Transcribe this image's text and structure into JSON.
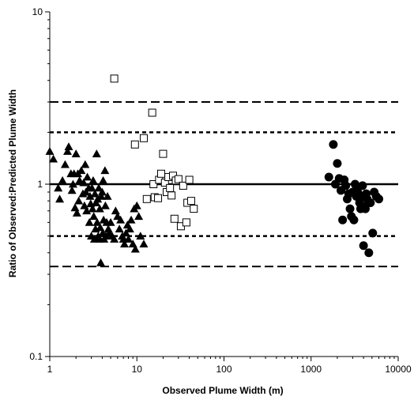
{
  "chart_data": {
    "type": "scatter",
    "xlabel": "Observed Plume Width (m)",
    "ylabel": "Ratio of Observed:Predicted Plume Width",
    "x_scale": "log",
    "y_scale": "log",
    "xlim": [
      1,
      10000
    ],
    "ylim": [
      0.1,
      10
    ],
    "x_ticks": [
      "1",
      "10",
      "100",
      "1000",
      "10000"
    ],
    "y_ticks": [
      "0.1",
      "1",
      "10"
    ],
    "grid": false,
    "reference_lines": [
      {
        "y": 1,
        "style": "solid"
      },
      {
        "y": 2,
        "style": "dotted"
      },
      {
        "y": 0.5,
        "style": "dotted"
      },
      {
        "y": 3,
        "style": "dashed"
      },
      {
        "y": 0.333,
        "style": "dashed"
      }
    ],
    "series": [
      {
        "marker": "triangle-filled",
        "points": [
          [
            1.0,
            1.55
          ],
          [
            1.1,
            1.4
          ],
          [
            1.25,
            0.95
          ],
          [
            1.3,
            0.82
          ],
          [
            1.4,
            1.05
          ],
          [
            1.5,
            1.3
          ],
          [
            1.6,
            1.55
          ],
          [
            1.65,
            1.65
          ],
          [
            1.75,
            1.15
          ],
          [
            1.8,
            0.92
          ],
          [
            1.85,
            1.0
          ],
          [
            1.9,
            1.15
          ],
          [
            1.95,
            0.73
          ],
          [
            2.0,
            1.5
          ],
          [
            2.05,
            0.68
          ],
          [
            2.1,
            1.15
          ],
          [
            2.15,
            0.8
          ],
          [
            2.2,
            1.05
          ],
          [
            2.3,
            1.2
          ],
          [
            2.4,
            0.88
          ],
          [
            2.45,
            1.02
          ],
          [
            2.5,
            0.75
          ],
          [
            2.55,
            1.3
          ],
          [
            2.6,
            0.9
          ],
          [
            2.65,
            0.7
          ],
          [
            2.7,
            1.1
          ],
          [
            2.8,
            0.95
          ],
          [
            2.85,
            0.6
          ],
          [
            2.9,
            0.85
          ],
          [
            2.95,
            0.77
          ],
          [
            3.0,
            0.5
          ],
          [
            3.05,
            0.95
          ],
          [
            3.1,
            0.72
          ],
          [
            3.15,
            1.05
          ],
          [
            3.2,
            0.65
          ],
          [
            3.25,
            0.48
          ],
          [
            3.3,
            0.88
          ],
          [
            3.35,
            0.55
          ],
          [
            3.4,
            0.78
          ],
          [
            3.45,
            1.5
          ],
          [
            3.5,
            0.6
          ],
          [
            3.55,
            0.82
          ],
          [
            3.6,
            0.5
          ],
          [
            3.65,
            0.95
          ],
          [
            3.7,
            0.48
          ],
          [
            3.75,
            0.72
          ],
          [
            3.8,
            0.56
          ],
          [
            3.85,
            0.35
          ],
          [
            3.9,
            0.85
          ],
          [
            4.0,
            0.9
          ],
          [
            4.05,
            0.52
          ],
          [
            4.1,
            1.05
          ],
          [
            4.15,
            0.62
          ],
          [
            4.2,
            0.48
          ],
          [
            4.3,
            1.2
          ],
          [
            4.35,
            0.75
          ],
          [
            4.4,
            0.5
          ],
          [
            4.5,
            0.6
          ],
          [
            4.6,
            0.85
          ],
          [
            4.7,
            0.55
          ],
          [
            4.8,
            0.52
          ],
          [
            5.0,
            0.6
          ],
          [
            5.2,
            0.5
          ],
          [
            5.5,
            0.48
          ],
          [
            5.7,
            0.7
          ],
          [
            6.0,
            0.65
          ],
          [
            6.3,
            0.55
          ],
          [
            6.5,
            0.62
          ],
          [
            6.8,
            0.5
          ],
          [
            7.0,
            0.48
          ],
          [
            7.2,
            0.45
          ],
          [
            7.5,
            0.52
          ],
          [
            7.8,
            0.58
          ],
          [
            8.0,
            0.48
          ],
          [
            8.3,
            0.55
          ],
          [
            8.6,
            0.62
          ],
          [
            9.0,
            0.45
          ],
          [
            9.3,
            0.72
          ],
          [
            9.6,
            0.42
          ],
          [
            10.0,
            0.75
          ],
          [
            10.5,
            0.65
          ],
          [
            11.0,
            0.5
          ],
          [
            12.0,
            0.45
          ]
        ]
      },
      {
        "marker": "square-open",
        "points": [
          [
            5.5,
            4.1
          ],
          [
            9.5,
            1.7
          ],
          [
            12.0,
            1.85
          ],
          [
            13.0,
            0.82
          ],
          [
            15.0,
            2.6
          ],
          [
            15.5,
            1.0
          ],
          [
            16.0,
            0.84
          ],
          [
            17.5,
            0.83
          ],
          [
            18.0,
            1.06
          ],
          [
            19.0,
            1.15
          ],
          [
            20.0,
            1.5
          ],
          [
            21.0,
            1.02
          ],
          [
            22.0,
            0.9
          ],
          [
            23.0,
            1.1
          ],
          [
            24.0,
            0.95
          ],
          [
            25.0,
            0.86
          ],
          [
            26.0,
            1.12
          ],
          [
            27.0,
            0.63
          ],
          [
            28.0,
            1.05
          ],
          [
            30.0,
            1.07
          ],
          [
            32.0,
            0.57
          ],
          [
            34.0,
            0.98
          ],
          [
            37.0,
            0.6
          ],
          [
            38.0,
            0.78
          ],
          [
            40.0,
            1.06
          ],
          [
            42.0,
            0.8
          ],
          [
            45.0,
            0.72
          ]
        ]
      },
      {
        "marker": "circle-filled",
        "points": [
          [
            1600,
            1.1
          ],
          [
            1800,
            1.7
          ],
          [
            1900,
            1.0
          ],
          [
            2000,
            1.32
          ],
          [
            2100,
            1.08
          ],
          [
            2200,
            0.92
          ],
          [
            2300,
            0.62
          ],
          [
            2400,
            1.06
          ],
          [
            2500,
            0.98
          ],
          [
            2600,
            0.82
          ],
          [
            2700,
            0.88
          ],
          [
            2800,
            0.72
          ],
          [
            2900,
            0.65
          ],
          [
            3000,
            0.9
          ],
          [
            3100,
            0.62
          ],
          [
            3200,
            1.0
          ],
          [
            3300,
            0.85
          ],
          [
            3400,
            0.93
          ],
          [
            3500,
            0.88
          ],
          [
            3600,
            0.78
          ],
          [
            3700,
            0.72
          ],
          [
            3800,
            0.85
          ],
          [
            3900,
            0.98
          ],
          [
            4000,
            0.44
          ],
          [
            4100,
            0.74
          ],
          [
            4200,
            0.72
          ],
          [
            4300,
            0.88
          ],
          [
            4400,
            0.82
          ],
          [
            4600,
            0.4
          ],
          [
            4800,
            0.78
          ],
          [
            5100,
            0.52
          ],
          [
            5300,
            0.9
          ],
          [
            5600,
            0.85
          ],
          [
            6000,
            0.82
          ]
        ]
      }
    ]
  }
}
